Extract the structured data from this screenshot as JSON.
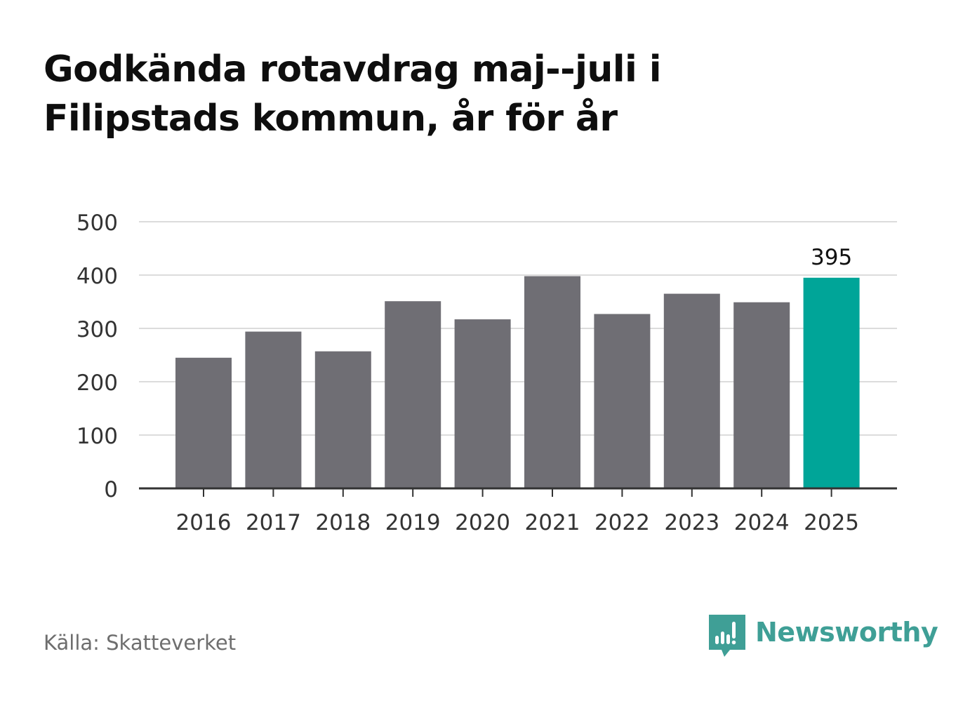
{
  "header": {
    "title_line1": "Godkända rotavdrag maj--juli i",
    "title_line2": "Filipstads kommun, år för år"
  },
  "footer": {
    "source": "Källa: Skatteverket",
    "brand": "Newsworthy",
    "brand_color": "#3f9f96"
  },
  "chart_data": {
    "type": "bar",
    "categories": [
      "2016",
      "2017",
      "2018",
      "2019",
      "2020",
      "2021",
      "2022",
      "2023",
      "2024",
      "2025"
    ],
    "values": [
      245,
      294,
      257,
      351,
      317,
      398,
      327,
      365,
      349,
      395
    ],
    "highlight_index": 9,
    "highlight_label": "395",
    "ylim": [
      0,
      500
    ],
    "yticks": [
      0,
      100,
      200,
      300,
      400,
      500
    ],
    "grid": true,
    "colors": {
      "bar": "#6f6e74",
      "highlight": "#00a598",
      "grid": "#dcdcdc",
      "axis": "#333333",
      "tick_text": "#333333"
    }
  }
}
